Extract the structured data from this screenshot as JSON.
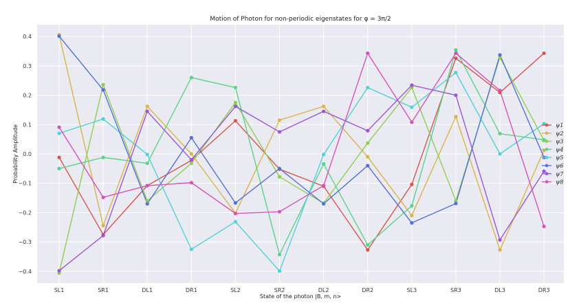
{
  "chart_data": {
    "type": "line",
    "title": "Motion of Photon for non-periodic eigenstates for φ = 3π/2",
    "xlabel": "State of the photon |B, m, n>",
    "ylabel": "Probability Amplitude",
    "categories": [
      "SL1",
      "SR1",
      "DL1",
      "DR1",
      "SL2",
      "SR2",
      "DL2",
      "DR2",
      "SL3",
      "SR3",
      "DL3",
      "DR3"
    ],
    "ylim": [
      -0.44,
      0.44
    ],
    "yticks": [
      -0.4,
      -0.3,
      -0.2,
      -0.1,
      0.0,
      0.1,
      0.2,
      0.3,
      0.4
    ],
    "ytick_labels": [
      "−0.4",
      "−0.3",
      "−0.2",
      "−0.1",
      "0.0",
      "0.1",
      "0.2",
      "0.3",
      "0.4"
    ],
    "grid": true,
    "background": "#eaeaf2",
    "legend_position": "right",
    "series": [
      {
        "name": "ψ1",
        "color": "#d9534f",
        "values": [
          -0.012,
          -0.275,
          -0.108,
          -0.022,
          0.113,
          -0.052,
          -0.11,
          -0.327,
          -0.104,
          0.326,
          0.209,
          0.343
        ]
      },
      {
        "name": "ψ2",
        "color": "#d9b44a",
        "values": [
          0.406,
          -0.244,
          0.162,
          0.0,
          -0.202,
          0.115,
          0.162,
          -0.01,
          -0.21,
          0.127,
          -0.327,
          0.012
        ]
      },
      {
        "name": "ψ3",
        "color": "#8fce50",
        "values": [
          -0.406,
          0.236,
          -0.16,
          -0.032,
          0.175,
          -0.078,
          -0.168,
          0.037,
          0.226,
          -0.16,
          0.329,
          0.046
        ]
      },
      {
        "name": "ψ4",
        "color": "#5ad38a",
        "values": [
          -0.05,
          -0.012,
          -0.032,
          0.26,
          0.226,
          -0.343,
          -0.034,
          -0.31,
          -0.177,
          0.354,
          0.069,
          0.048
        ]
      },
      {
        "name": "ψ5",
        "color": "#52d1d6",
        "values": [
          0.07,
          0.119,
          -0.002,
          -0.325,
          -0.231,
          -0.399,
          -0.002,
          0.226,
          0.159,
          0.277,
          0.0,
          0.103
        ]
      },
      {
        "name": "ψ6",
        "color": "#5570d4",
        "values": [
          0.401,
          0.218,
          -0.17,
          0.055,
          -0.167,
          -0.05,
          -0.17,
          -0.04,
          -0.235,
          -0.169,
          0.337,
          -0.012
        ]
      },
      {
        "name": "ψ7",
        "color": "#9b55d6",
        "values": [
          -0.398,
          -0.278,
          0.145,
          -0.02,
          0.162,
          0.075,
          0.145,
          0.079,
          0.234,
          0.2,
          -0.293,
          -0.059
        ]
      },
      {
        "name": "ψ8",
        "color": "#d652b8",
        "values": [
          0.091,
          -0.148,
          -0.108,
          -0.098,
          -0.203,
          -0.197,
          -0.108,
          0.343,
          0.108,
          0.343,
          0.216,
          -0.247
        ]
      }
    ]
  }
}
